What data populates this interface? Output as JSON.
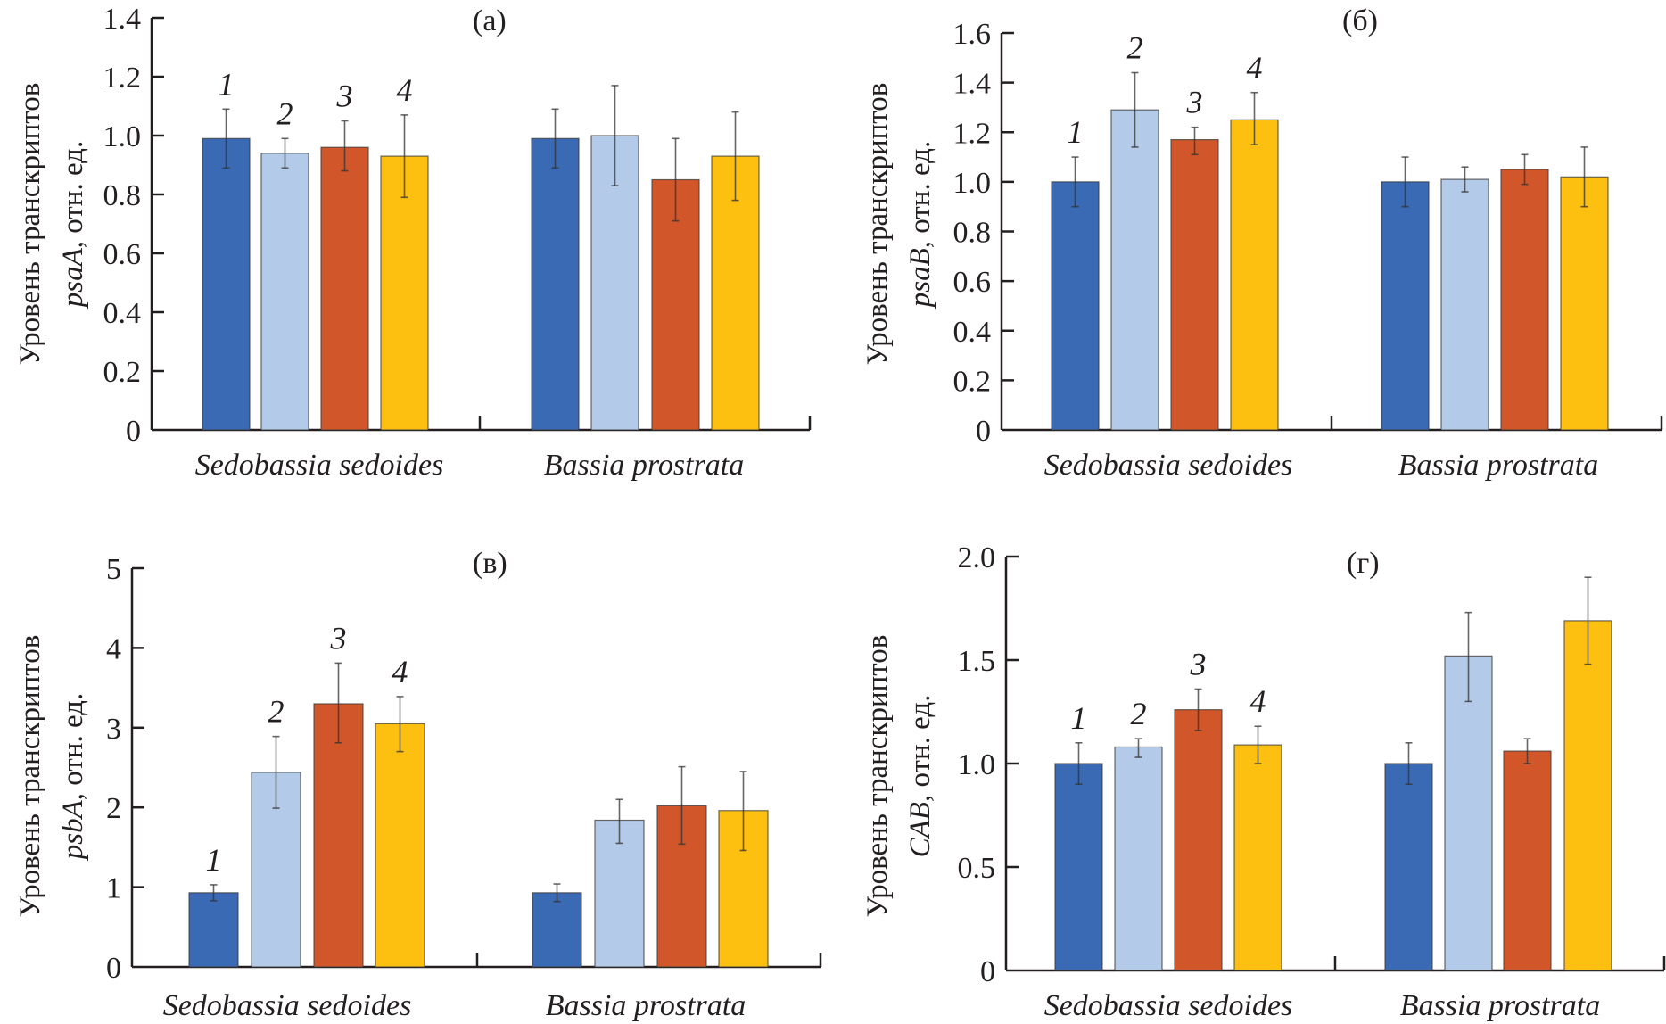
{
  "chart_data": [
    {
      "type": "bar",
      "panel_label": "(а)",
      "ylabel_line1": "Уровень транскриптов",
      "ylabel_gene": "psaA",
      "ylabel_suffix": ", отн. ед.",
      "ylim": [
        0,
        1.4
      ],
      "yticks": [
        0,
        0.2,
        0.4,
        0.6,
        0.8,
        1.0,
        1.2,
        1.4
      ],
      "ytick_labels": [
        "0",
        "0.2",
        "0.4",
        "0.6",
        "0.8",
        "1.0",
        "1.2",
        "1.4"
      ],
      "categories": [
        "Sedobassia sedoides",
        "Bassia prostrata"
      ],
      "bar_numbers": [
        "1",
        "2",
        "3",
        "4"
      ],
      "numbers_on_group": 0,
      "series": [
        {
          "name": "1",
          "values": [
            0.99,
            0.99
          ],
          "err_low": [
            0.89,
            0.89
          ],
          "err_high": [
            1.09,
            1.09
          ]
        },
        {
          "name": "2",
          "values": [
            0.94,
            1.0
          ],
          "err_low": [
            0.89,
            0.83
          ],
          "err_high": [
            0.99,
            1.17
          ]
        },
        {
          "name": "3",
          "values": [
            0.96,
            0.85
          ],
          "err_low": [
            0.88,
            0.71
          ],
          "err_high": [
            1.05,
            0.99
          ]
        },
        {
          "name": "4",
          "values": [
            0.93,
            0.93
          ],
          "err_low": [
            0.79,
            0.78
          ],
          "err_high": [
            1.07,
            1.08
          ]
        }
      ]
    },
    {
      "type": "bar",
      "panel_label": "(б)",
      "ylabel_line1": "Уровень транскриптов",
      "ylabel_gene": "psaB",
      "ylabel_suffix": ", отн. ед.",
      "ylim": [
        0,
        1.6
      ],
      "yticks": [
        0,
        0.2,
        0.4,
        0.6,
        0.8,
        1.0,
        1.2,
        1.4,
        1.6
      ],
      "ytick_labels": [
        "0",
        "0.2",
        "0.4",
        "0.6",
        "0.8",
        "1.0",
        "1.2",
        "1.4",
        "1.6"
      ],
      "categories": [
        "Sedobassia sedoides",
        "Bassia prostrata"
      ],
      "bar_numbers": [
        "1",
        "2",
        "3",
        "4"
      ],
      "numbers_on_group": 0,
      "series": [
        {
          "name": "1",
          "values": [
            1.0,
            1.0
          ],
          "err_low": [
            0.9,
            0.9
          ],
          "err_high": [
            1.1,
            1.1
          ]
        },
        {
          "name": "2",
          "values": [
            1.29,
            1.01
          ],
          "err_low": [
            1.14,
            0.96
          ],
          "err_high": [
            1.44,
            1.06
          ]
        },
        {
          "name": "3",
          "values": [
            1.17,
            1.05
          ],
          "err_low": [
            1.11,
            0.99
          ],
          "err_high": [
            1.22,
            1.11
          ]
        },
        {
          "name": "4",
          "values": [
            1.25,
            1.02
          ],
          "err_low": [
            1.15,
            0.9
          ],
          "err_high": [
            1.36,
            1.14
          ]
        }
      ]
    },
    {
      "type": "bar",
      "panel_label": "(в)",
      "ylabel_line1": "Уровень транскриптов",
      "ylabel_gene": "psbA",
      "ylabel_suffix": ", отн. ед.",
      "ylim": [
        0,
        5
      ],
      "yticks": [
        0,
        1,
        2,
        3,
        4,
        5
      ],
      "ytick_labels": [
        "0",
        "1",
        "2",
        "3",
        "4",
        "5"
      ],
      "categories": [
        "Sedobassia sedoides",
        "Bassia prostrata"
      ],
      "bar_numbers": [
        "1",
        "2",
        "3",
        "4"
      ],
      "numbers_on_group": 0,
      "series": [
        {
          "name": "1",
          "values": [
            0.93,
            0.93
          ],
          "err_low": [
            0.83,
            0.82
          ],
          "err_high": [
            1.03,
            1.04
          ]
        },
        {
          "name": "2",
          "values": [
            2.44,
            1.84
          ],
          "err_low": [
            1.99,
            1.55
          ],
          "err_high": [
            2.89,
            2.1
          ]
        },
        {
          "name": "3",
          "values": [
            3.3,
            2.02
          ],
          "err_low": [
            2.81,
            1.54
          ],
          "err_high": [
            3.81,
            2.51
          ]
        },
        {
          "name": "4",
          "values": [
            3.05,
            1.96
          ],
          "err_low": [
            2.7,
            1.46
          ],
          "err_high": [
            3.39,
            2.45
          ]
        }
      ]
    },
    {
      "type": "bar",
      "panel_label": "(г)",
      "ylabel_line1": "Уровень транскриптов",
      "ylabel_gene": "CAB",
      "ylabel_suffix": ", отн. ед.",
      "ylim": [
        0,
        2.0
      ],
      "yticks": [
        0,
        0.5,
        1.0,
        1.5,
        2.0
      ],
      "ytick_labels": [
        "0",
        "0.5",
        "1.0",
        "1.5",
        "2.0"
      ],
      "categories": [
        "Sedobassia sedoides",
        "Bassia prostrata"
      ],
      "bar_numbers": [
        "1",
        "2",
        "3",
        "4"
      ],
      "numbers_on_group": 0,
      "series": [
        {
          "name": "1",
          "values": [
            1.0,
            1.0
          ],
          "err_low": [
            0.9,
            0.9
          ],
          "err_high": [
            1.1,
            1.1
          ]
        },
        {
          "name": "2",
          "values": [
            1.08,
            1.52
          ],
          "err_low": [
            1.03,
            1.3
          ],
          "err_high": [
            1.12,
            1.73
          ]
        },
        {
          "name": "3",
          "values": [
            1.26,
            1.06
          ],
          "err_low": [
            1.16,
            1.0
          ],
          "err_high": [
            1.36,
            1.12
          ]
        },
        {
          "name": "4",
          "values": [
            1.09,
            1.69
          ],
          "err_low": [
            1.0,
            1.48
          ],
          "err_high": [
            1.18,
            1.9
          ]
        }
      ]
    }
  ],
  "series_colors": [
    "#3a6ab3",
    "#b3cae8",
    "#d1572a",
    "#fdc010"
  ]
}
